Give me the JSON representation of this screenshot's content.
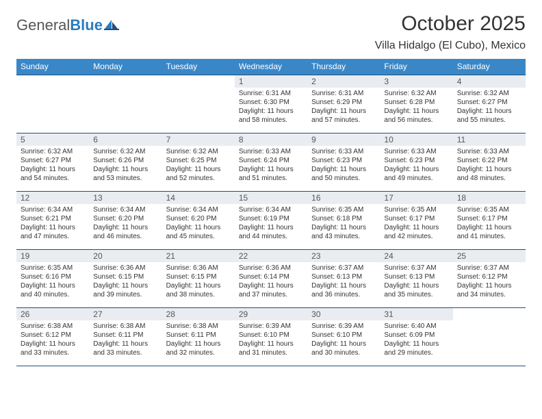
{
  "logo": {
    "word1": "General",
    "word2": "Blue"
  },
  "title": "October 2025",
  "location": "Villa Hidalgo (El Cubo), Mexico",
  "colors": {
    "header_bg": "#3a87c8",
    "header_text": "#ffffff",
    "rule": "#1f4e79",
    "daynum_bg": "#e9edf2",
    "body_text": "#333333",
    "logo_gray": "#555555",
    "logo_blue": "#2b7bbd"
  },
  "dow": [
    "Sunday",
    "Monday",
    "Tuesday",
    "Wednesday",
    "Thursday",
    "Friday",
    "Saturday"
  ],
  "weeks": [
    [
      {
        "n": "",
        "sunrise": "",
        "sunset": "",
        "daylight": ""
      },
      {
        "n": "",
        "sunrise": "",
        "sunset": "",
        "daylight": ""
      },
      {
        "n": "",
        "sunrise": "",
        "sunset": "",
        "daylight": ""
      },
      {
        "n": "1",
        "sunrise": "Sunrise: 6:31 AM",
        "sunset": "Sunset: 6:30 PM",
        "daylight": "Daylight: 11 hours and 58 minutes."
      },
      {
        "n": "2",
        "sunrise": "Sunrise: 6:31 AM",
        "sunset": "Sunset: 6:29 PM",
        "daylight": "Daylight: 11 hours and 57 minutes."
      },
      {
        "n": "3",
        "sunrise": "Sunrise: 6:32 AM",
        "sunset": "Sunset: 6:28 PM",
        "daylight": "Daylight: 11 hours and 56 minutes."
      },
      {
        "n": "4",
        "sunrise": "Sunrise: 6:32 AM",
        "sunset": "Sunset: 6:27 PM",
        "daylight": "Daylight: 11 hours and 55 minutes."
      }
    ],
    [
      {
        "n": "5",
        "sunrise": "Sunrise: 6:32 AM",
        "sunset": "Sunset: 6:27 PM",
        "daylight": "Daylight: 11 hours and 54 minutes."
      },
      {
        "n": "6",
        "sunrise": "Sunrise: 6:32 AM",
        "sunset": "Sunset: 6:26 PM",
        "daylight": "Daylight: 11 hours and 53 minutes."
      },
      {
        "n": "7",
        "sunrise": "Sunrise: 6:32 AM",
        "sunset": "Sunset: 6:25 PM",
        "daylight": "Daylight: 11 hours and 52 minutes."
      },
      {
        "n": "8",
        "sunrise": "Sunrise: 6:33 AM",
        "sunset": "Sunset: 6:24 PM",
        "daylight": "Daylight: 11 hours and 51 minutes."
      },
      {
        "n": "9",
        "sunrise": "Sunrise: 6:33 AM",
        "sunset": "Sunset: 6:23 PM",
        "daylight": "Daylight: 11 hours and 50 minutes."
      },
      {
        "n": "10",
        "sunrise": "Sunrise: 6:33 AM",
        "sunset": "Sunset: 6:23 PM",
        "daylight": "Daylight: 11 hours and 49 minutes."
      },
      {
        "n": "11",
        "sunrise": "Sunrise: 6:33 AM",
        "sunset": "Sunset: 6:22 PM",
        "daylight": "Daylight: 11 hours and 48 minutes."
      }
    ],
    [
      {
        "n": "12",
        "sunrise": "Sunrise: 6:34 AM",
        "sunset": "Sunset: 6:21 PM",
        "daylight": "Daylight: 11 hours and 47 minutes."
      },
      {
        "n": "13",
        "sunrise": "Sunrise: 6:34 AM",
        "sunset": "Sunset: 6:20 PM",
        "daylight": "Daylight: 11 hours and 46 minutes."
      },
      {
        "n": "14",
        "sunrise": "Sunrise: 6:34 AM",
        "sunset": "Sunset: 6:20 PM",
        "daylight": "Daylight: 11 hours and 45 minutes."
      },
      {
        "n": "15",
        "sunrise": "Sunrise: 6:34 AM",
        "sunset": "Sunset: 6:19 PM",
        "daylight": "Daylight: 11 hours and 44 minutes."
      },
      {
        "n": "16",
        "sunrise": "Sunrise: 6:35 AM",
        "sunset": "Sunset: 6:18 PM",
        "daylight": "Daylight: 11 hours and 43 minutes."
      },
      {
        "n": "17",
        "sunrise": "Sunrise: 6:35 AM",
        "sunset": "Sunset: 6:17 PM",
        "daylight": "Daylight: 11 hours and 42 minutes."
      },
      {
        "n": "18",
        "sunrise": "Sunrise: 6:35 AM",
        "sunset": "Sunset: 6:17 PM",
        "daylight": "Daylight: 11 hours and 41 minutes."
      }
    ],
    [
      {
        "n": "19",
        "sunrise": "Sunrise: 6:35 AM",
        "sunset": "Sunset: 6:16 PM",
        "daylight": "Daylight: 11 hours and 40 minutes."
      },
      {
        "n": "20",
        "sunrise": "Sunrise: 6:36 AM",
        "sunset": "Sunset: 6:15 PM",
        "daylight": "Daylight: 11 hours and 39 minutes."
      },
      {
        "n": "21",
        "sunrise": "Sunrise: 6:36 AM",
        "sunset": "Sunset: 6:15 PM",
        "daylight": "Daylight: 11 hours and 38 minutes."
      },
      {
        "n": "22",
        "sunrise": "Sunrise: 6:36 AM",
        "sunset": "Sunset: 6:14 PM",
        "daylight": "Daylight: 11 hours and 37 minutes."
      },
      {
        "n": "23",
        "sunrise": "Sunrise: 6:37 AM",
        "sunset": "Sunset: 6:13 PM",
        "daylight": "Daylight: 11 hours and 36 minutes."
      },
      {
        "n": "24",
        "sunrise": "Sunrise: 6:37 AM",
        "sunset": "Sunset: 6:13 PM",
        "daylight": "Daylight: 11 hours and 35 minutes."
      },
      {
        "n": "25",
        "sunrise": "Sunrise: 6:37 AM",
        "sunset": "Sunset: 6:12 PM",
        "daylight": "Daylight: 11 hours and 34 minutes."
      }
    ],
    [
      {
        "n": "26",
        "sunrise": "Sunrise: 6:38 AM",
        "sunset": "Sunset: 6:12 PM",
        "daylight": "Daylight: 11 hours and 33 minutes."
      },
      {
        "n": "27",
        "sunrise": "Sunrise: 6:38 AM",
        "sunset": "Sunset: 6:11 PM",
        "daylight": "Daylight: 11 hours and 33 minutes."
      },
      {
        "n": "28",
        "sunrise": "Sunrise: 6:38 AM",
        "sunset": "Sunset: 6:11 PM",
        "daylight": "Daylight: 11 hours and 32 minutes."
      },
      {
        "n": "29",
        "sunrise": "Sunrise: 6:39 AM",
        "sunset": "Sunset: 6:10 PM",
        "daylight": "Daylight: 11 hours and 31 minutes."
      },
      {
        "n": "30",
        "sunrise": "Sunrise: 6:39 AM",
        "sunset": "Sunset: 6:10 PM",
        "daylight": "Daylight: 11 hours and 30 minutes."
      },
      {
        "n": "31",
        "sunrise": "Sunrise: 6:40 AM",
        "sunset": "Sunset: 6:09 PM",
        "daylight": "Daylight: 11 hours and 29 minutes."
      },
      {
        "n": "",
        "sunrise": "",
        "sunset": "",
        "daylight": ""
      }
    ]
  ]
}
